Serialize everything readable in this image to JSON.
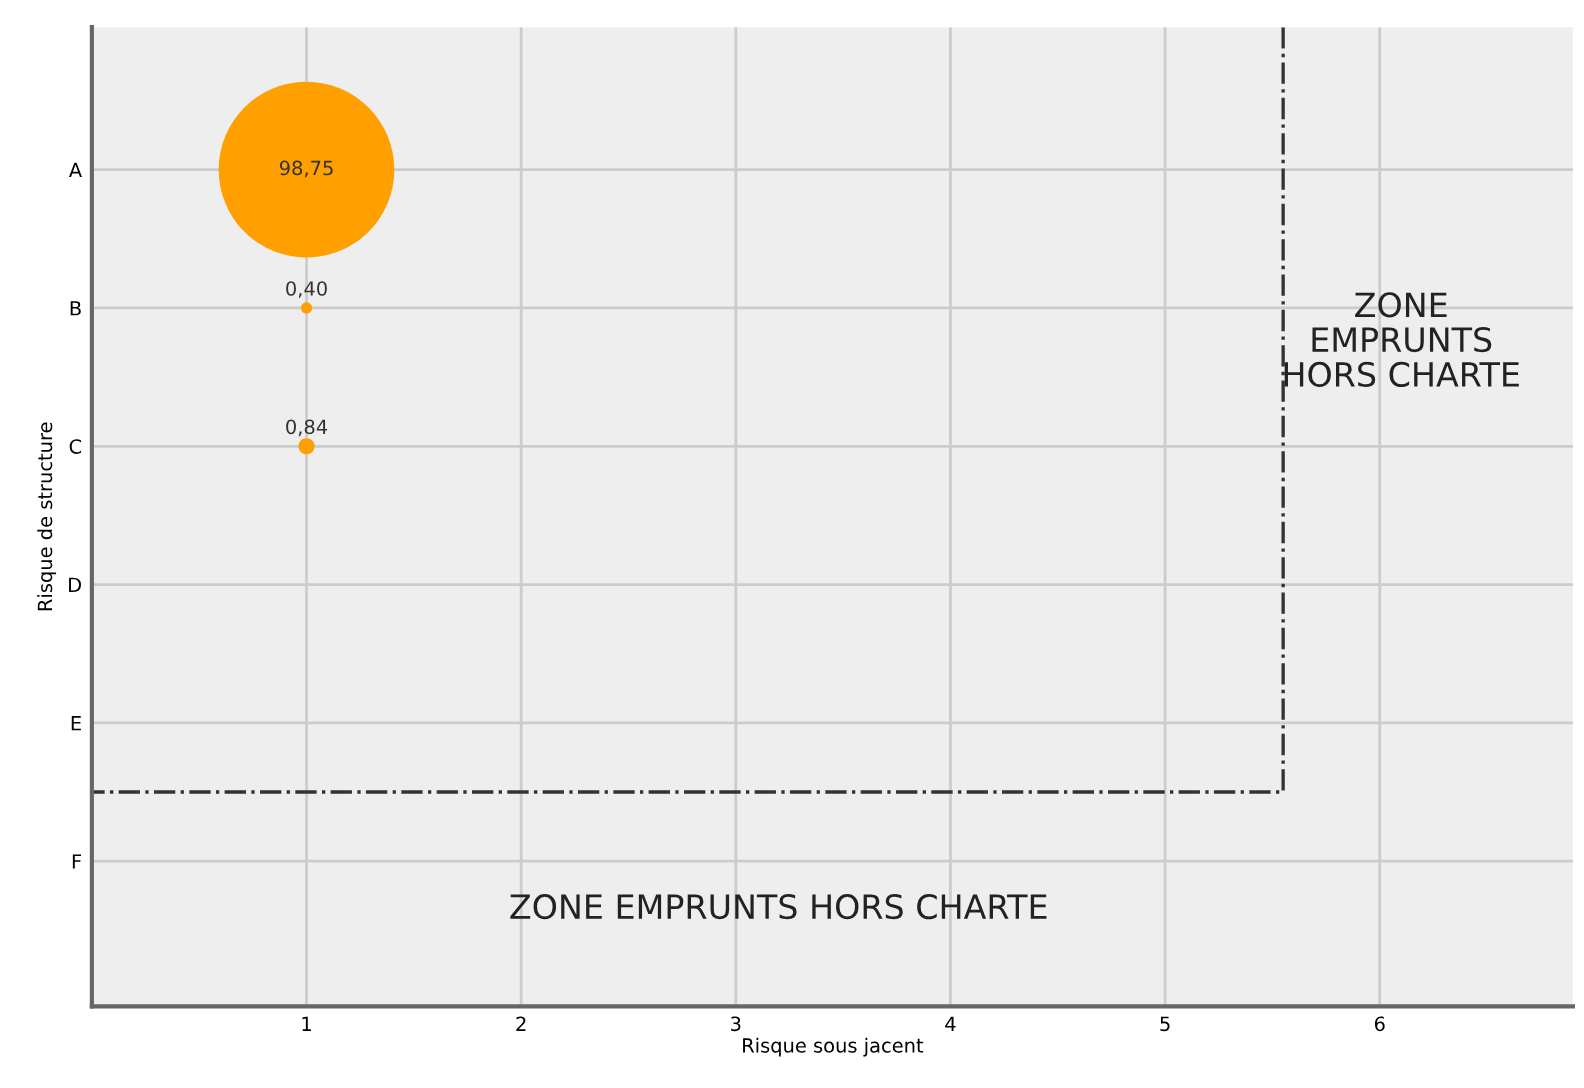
{
  "chart_data": {
    "type": "bubble",
    "orientation": "horizontal",
    "xlabel": "Risque sous jacent",
    "ylabel": "Risque de structure",
    "categories": [
      "A",
      "B",
      "C",
      "D",
      "E",
      "F"
    ],
    "series": [
      {
        "color": "#ffa000",
        "values": [
          1,
          1,
          1,
          null,
          null,
          null
        ],
        "sizes": [
          98.75,
          0.4,
          0.84,
          null,
          null,
          null
        ],
        "value_labels": [
          "98,75",
          "0,40",
          "0,84",
          null,
          null,
          null
        ]
      }
    ],
    "xlim": [
      0,
      6.9
    ],
    "xticks": [
      1,
      2,
      3,
      4,
      5,
      6
    ],
    "grid": true,
    "ref_lines": [
      {
        "axis": "x",
        "value": 5.55,
        "line_style": "dashdot",
        "color": "#333333"
      }
    ],
    "annotations": [
      "ZONE\nEMPRUNTS\nHORS CHARTE",
      "ZONE EMPRUNTS HORS CHARTE"
    ]
  }
}
